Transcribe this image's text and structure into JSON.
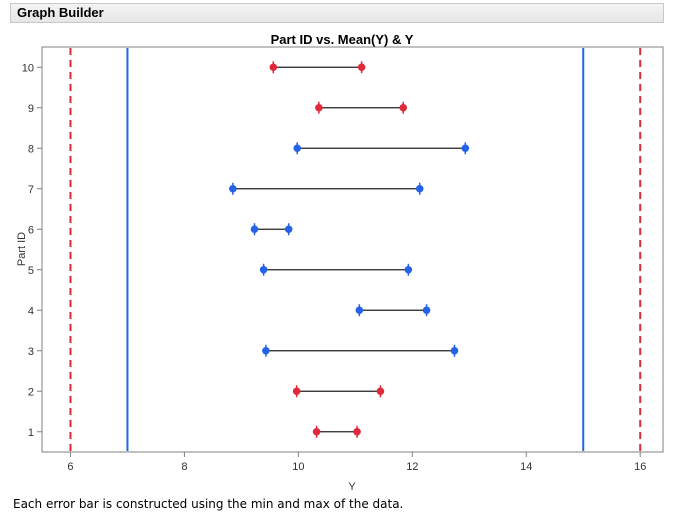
{
  "window": {
    "title": "Graph Builder"
  },
  "footnote": "Each error bar is constructed using the min and max of the data.",
  "colors": {
    "blue": "#2463e6",
    "red": "#e02a3c",
    "bar": "#222222",
    "frame": "#808080"
  },
  "chart_data": {
    "type": "scatter",
    "subtype": "horizontal-error-bars",
    "title": "Part ID vs. Mean(Y) & Y",
    "xlabel": "Y",
    "ylabel": "Part ID",
    "xlim": [
      5.5,
      16.4
    ],
    "ylim": [
      0.5,
      10.5
    ],
    "x_ticks": [
      6,
      8,
      10,
      12,
      14,
      16
    ],
    "y_ticks": [
      1,
      2,
      3,
      4,
      5,
      6,
      7,
      8,
      9,
      10
    ],
    "grid": false,
    "reference_lines": [
      {
        "x": 6,
        "style": "dashed",
        "color": "red"
      },
      {
        "x": 7,
        "style": "solid",
        "color": "blue"
      },
      {
        "x": 15,
        "style": "solid",
        "color": "blue"
      },
      {
        "x": 16,
        "style": "dashed",
        "color": "red"
      }
    ],
    "bars": [
      {
        "part": 1,
        "min": 10.32,
        "max": 11.03,
        "color": "red"
      },
      {
        "part": 2,
        "min": 9.97,
        "max": 11.44,
        "color": "red"
      },
      {
        "part": 3,
        "min": 9.43,
        "max": 12.74,
        "color": "blue"
      },
      {
        "part": 4,
        "min": 11.07,
        "max": 12.25,
        "color": "blue"
      },
      {
        "part": 5,
        "min": 9.39,
        "max": 11.93,
        "color": "blue"
      },
      {
        "part": 6,
        "min": 9.23,
        "max": 9.83,
        "color": "blue"
      },
      {
        "part": 7,
        "min": 8.85,
        "max": 12.13,
        "color": "blue"
      },
      {
        "part": 8,
        "min": 9.98,
        "max": 12.93,
        "color": "blue"
      },
      {
        "part": 9,
        "min": 10.36,
        "max": 11.84,
        "color": "red"
      },
      {
        "part": 10,
        "min": 9.56,
        "max": 11.11,
        "color": "red"
      }
    ]
  }
}
